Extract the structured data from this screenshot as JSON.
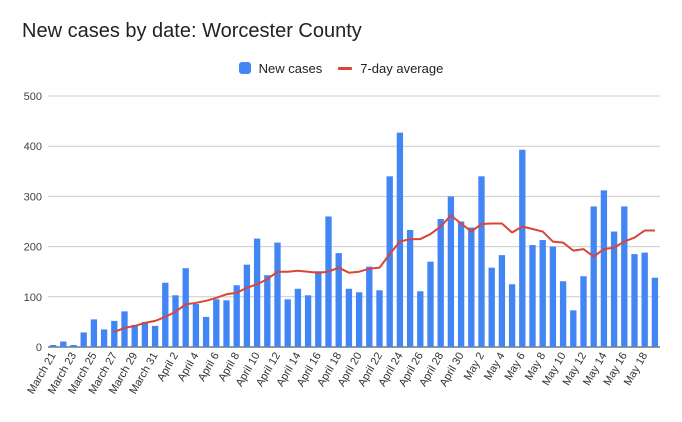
{
  "chart_data": {
    "type": "bar",
    "title": "New cases by date: Worcester County",
    "xlabel": "",
    "ylabel": "",
    "ylim": [
      0,
      500
    ],
    "yticks": [
      0,
      100,
      200,
      300,
      400,
      500
    ],
    "grid": true,
    "legend_position": "top-center",
    "categories": [
      "March 21",
      "March 22",
      "March 23",
      "March 24",
      "March 25",
      "March 26",
      "March 27",
      "March 28",
      "March 29",
      "March 30",
      "March 31",
      "April 1",
      "April 2",
      "April 3",
      "April 4",
      "April 5",
      "April 6",
      "April 7",
      "April 8",
      "April 9",
      "April 10",
      "April 11",
      "April 12",
      "April 13",
      "April 14",
      "April 15",
      "April 16",
      "April 17",
      "April 18",
      "April 19",
      "April 20",
      "April 21",
      "April 22",
      "April 23",
      "April 24",
      "April 25",
      "April 26",
      "April 27",
      "April 28",
      "April 29",
      "April 30",
      "May 1",
      "May 2",
      "May 3",
      "May 4",
      "May 5",
      "May 6",
      "May 7",
      "May 8",
      "May 9",
      "May 10",
      "May 11",
      "May 12",
      "May 13",
      "May 14",
      "May 15",
      "May 16",
      "May 17",
      "May 18",
      "May 19"
    ],
    "tick_labels": [
      "March 21",
      "March 23",
      "March 25",
      "March 27",
      "March 29",
      "March 31",
      "April 2",
      "April 4",
      "April 6",
      "April 8",
      "April 10",
      "April 12",
      "April 14",
      "April 16",
      "April 18",
      "April 20",
      "April 22",
      "April 24",
      "April 26",
      "April 28",
      "April 30",
      "May 2",
      "May 4",
      "May 6",
      "May 8",
      "May 10",
      "May 12",
      "May 14",
      "May 16",
      "May 18"
    ],
    "series": [
      {
        "name": "New cases",
        "type": "bar",
        "color": "#4285f4",
        "values": [
          4,
          11,
          4,
          29,
          55,
          35,
          52,
          71,
          44,
          50,
          42,
          128,
          103,
          157,
          86,
          60,
          95,
          93,
          123,
          164,
          216,
          143,
          208,
          95,
          116,
          103,
          151,
          260,
          187,
          116,
          109,
          160,
          113,
          340,
          427,
          233,
          111,
          170,
          255,
          300,
          250,
          238,
          340,
          158,
          183,
          125,
          393,
          203,
          213,
          200,
          131,
          73,
          141,
          280,
          312,
          230,
          280,
          185,
          188,
          138
        ]
      },
      {
        "name": "7-day average",
        "type": "line",
        "color": "#db4437",
        "values": [
          null,
          null,
          null,
          null,
          null,
          null,
          30,
          38,
          42,
          48,
          52,
          60,
          70,
          85,
          88,
          92,
          98,
          105,
          108,
          118,
          125,
          135,
          150,
          150,
          152,
          150,
          148,
          150,
          158,
          148,
          150,
          156,
          158,
          185,
          210,
          215,
          215,
          225,
          240,
          262,
          246,
          230,
          245,
          246,
          246,
          228,
          240,
          235,
          230,
          210,
          208,
          192,
          195,
          180,
          195,
          198,
          210,
          218,
          232,
          232
        ]
      }
    ]
  }
}
